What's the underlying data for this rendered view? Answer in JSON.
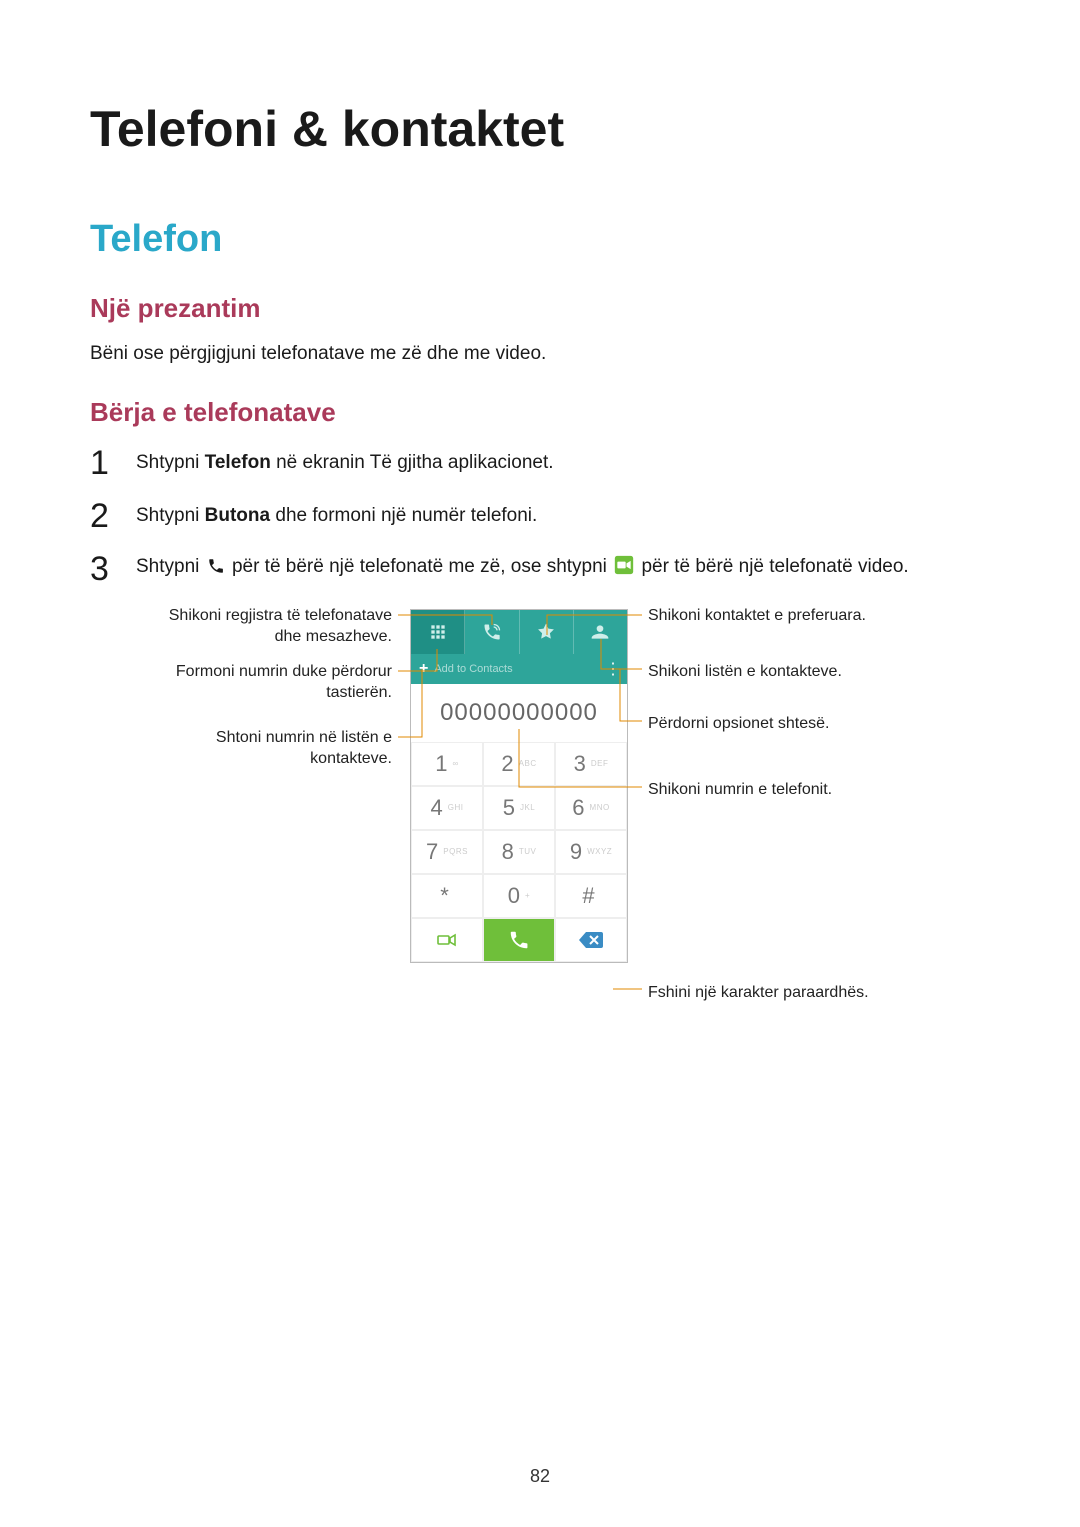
{
  "colors": {
    "h2": "#2aa8c9",
    "h3": "#aa3a5a",
    "teal": "#2ea59a",
    "green": "#6fbf3a",
    "leader": "#e08a00",
    "key_digit": "#777777",
    "key_letter": "#cccccc"
  },
  "page_number": "82",
  "headings": {
    "h1": "Telefoni & kontaktet",
    "h2": "Telefon",
    "h3a": "Një prezantim",
    "h3b": "Bërja e telefonatave"
  },
  "intro": "Bëni ose përgjigjuni telefonatave me zë dhe me video.",
  "steps": [
    {
      "n": "1",
      "pre": "Shtypni ",
      "bold": "Telefon",
      "post": " në ekranin Të gjitha aplikacionet."
    },
    {
      "n": "2",
      "pre": "Shtypni ",
      "bold": "Butona",
      "post": " dhe formoni një numër telefoni."
    },
    {
      "n": "3",
      "pre": "Shtypni ",
      "mid": " për të bërë një telefonatë me zë, ose shtypni ",
      "post": " për të bërë një telefonatë video."
    }
  ],
  "phone": {
    "add_to_contacts": "Add to Contacts",
    "number": "00000000000",
    "keys": [
      {
        "d": "1",
        "l": "∞"
      },
      {
        "d": "2",
        "l": "ABC"
      },
      {
        "d": "3",
        "l": "DEF"
      },
      {
        "d": "4",
        "l": "GHI"
      },
      {
        "d": "5",
        "l": "JKL"
      },
      {
        "d": "6",
        "l": "MNO"
      },
      {
        "d": "7",
        "l": "PQRS"
      },
      {
        "d": "8",
        "l": "TUV"
      },
      {
        "d": "9",
        "l": "WXYZ"
      },
      {
        "d": "*",
        "l": ""
      },
      {
        "d": "0",
        "l": "+"
      },
      {
        "d": "#",
        "l": ""
      }
    ]
  },
  "labels": {
    "left1_a": "Shikoni regjistra të telefonatave",
    "left1_b": "dhe mesazheve.",
    "left2_a": "Formoni numrin duke përdorur",
    "left2_b": "tastierën.",
    "left3_a": "Shtoni numrin në listën e",
    "left3_b": "kontakteve.",
    "right1": "Shikoni kontaktet e preferuara.",
    "right2": "Shikoni listën e kontakteve.",
    "right3": "Përdorni opsionet shtesë.",
    "right4": "Shikoni numrin e telefonit.",
    "right5": "Fshini një karakter paraardhës."
  }
}
